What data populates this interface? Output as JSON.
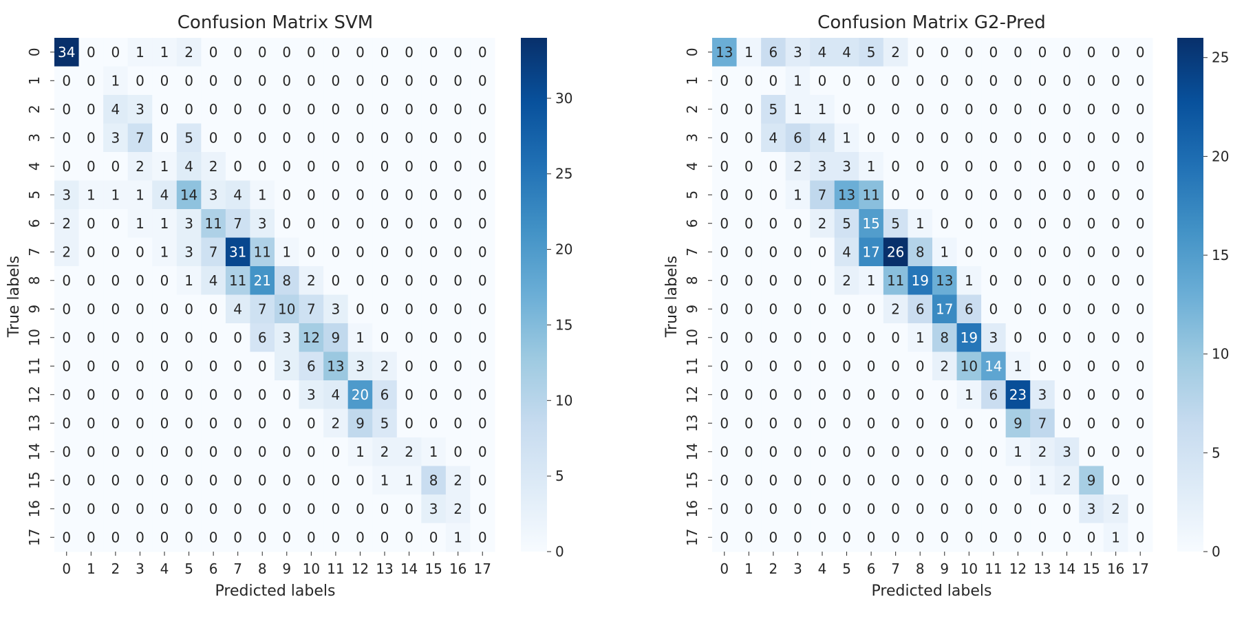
{
  "chart_data": [
    {
      "type": "heatmap",
      "title": "Confusion Matrix SVM",
      "xlabel": "Predicted labels",
      "ylabel": "True labels",
      "x_ticks": [
        "0",
        "1",
        "2",
        "3",
        "4",
        "5",
        "6",
        "7",
        "8",
        "9",
        "10",
        "11",
        "12",
        "13",
        "14",
        "15",
        "16",
        "17"
      ],
      "y_ticks": [
        "0",
        "1",
        "2",
        "3",
        "4",
        "5",
        "6",
        "7",
        "8",
        "9",
        "10",
        "11",
        "12",
        "13",
        "14",
        "15",
        "16",
        "17"
      ],
      "colormap": "Blues",
      "vmin": 0,
      "vmax": 34,
      "colorbar_ticks": [
        0,
        5,
        10,
        15,
        20,
        25,
        30
      ],
      "matrix": [
        [
          34,
          0,
          0,
          1,
          1,
          2,
          0,
          0,
          0,
          0,
          0,
          0,
          0,
          0,
          0,
          0,
          0,
          0
        ],
        [
          0,
          0,
          1,
          0,
          0,
          0,
          0,
          0,
          0,
          0,
          0,
          0,
          0,
          0,
          0,
          0,
          0,
          0
        ],
        [
          0,
          0,
          4,
          3,
          0,
          0,
          0,
          0,
          0,
          0,
          0,
          0,
          0,
          0,
          0,
          0,
          0,
          0
        ],
        [
          0,
          0,
          3,
          7,
          0,
          5,
          0,
          0,
          0,
          0,
          0,
          0,
          0,
          0,
          0,
          0,
          0,
          0
        ],
        [
          0,
          0,
          0,
          2,
          1,
          4,
          2,
          0,
          0,
          0,
          0,
          0,
          0,
          0,
          0,
          0,
          0,
          0
        ],
        [
          3,
          1,
          1,
          1,
          4,
          14,
          3,
          4,
          1,
          0,
          0,
          0,
          0,
          0,
          0,
          0,
          0,
          0
        ],
        [
          2,
          0,
          0,
          1,
          1,
          3,
          11,
          7,
          3,
          0,
          0,
          0,
          0,
          0,
          0,
          0,
          0,
          0
        ],
        [
          2,
          0,
          0,
          0,
          1,
          3,
          7,
          31,
          11,
          1,
          0,
          0,
          0,
          0,
          0,
          0,
          0,
          0
        ],
        [
          0,
          0,
          0,
          0,
          0,
          1,
          4,
          11,
          21,
          8,
          2,
          0,
          0,
          0,
          0,
          0,
          0,
          0
        ],
        [
          0,
          0,
          0,
          0,
          0,
          0,
          0,
          4,
          7,
          10,
          7,
          3,
          0,
          0,
          0,
          0,
          0,
          0
        ],
        [
          0,
          0,
          0,
          0,
          0,
          0,
          0,
          0,
          6,
          3,
          12,
          9,
          1,
          0,
          0,
          0,
          0,
          0
        ],
        [
          0,
          0,
          0,
          0,
          0,
          0,
          0,
          0,
          0,
          3,
          6,
          13,
          3,
          2,
          0,
          0,
          0,
          0
        ],
        [
          0,
          0,
          0,
          0,
          0,
          0,
          0,
          0,
          0,
          0,
          3,
          4,
          20,
          6,
          0,
          0,
          0,
          0
        ],
        [
          0,
          0,
          0,
          0,
          0,
          0,
          0,
          0,
          0,
          0,
          0,
          2,
          9,
          5,
          0,
          0,
          0,
          0
        ],
        [
          0,
          0,
          0,
          0,
          0,
          0,
          0,
          0,
          0,
          0,
          0,
          0,
          1,
          2,
          2,
          1,
          0,
          0
        ],
        [
          0,
          0,
          0,
          0,
          0,
          0,
          0,
          0,
          0,
          0,
          0,
          0,
          0,
          1,
          1,
          8,
          2,
          0
        ],
        [
          0,
          0,
          0,
          0,
          0,
          0,
          0,
          0,
          0,
          0,
          0,
          0,
          0,
          0,
          0,
          3,
          2,
          0
        ],
        [
          0,
          0,
          0,
          0,
          0,
          0,
          0,
          0,
          0,
          0,
          0,
          0,
          0,
          0,
          0,
          0,
          1,
          0
        ]
      ]
    },
    {
      "type": "heatmap",
      "title": "Confusion Matrix G2-Pred",
      "xlabel": "Predicted labels",
      "ylabel": "True labels",
      "x_ticks": [
        "0",
        "1",
        "2",
        "3",
        "4",
        "5",
        "6",
        "7",
        "8",
        "9",
        "10",
        "11",
        "12",
        "13",
        "14",
        "15",
        "16",
        "17"
      ],
      "y_ticks": [
        "0",
        "1",
        "2",
        "3",
        "4",
        "5",
        "6",
        "7",
        "8",
        "9",
        "10",
        "11",
        "12",
        "13",
        "14",
        "15",
        "16",
        "17"
      ],
      "colormap": "Blues",
      "vmin": 0,
      "vmax": 26,
      "colorbar_ticks": [
        0,
        5,
        10,
        15,
        20,
        25
      ],
      "matrix": [
        [
          13,
          1,
          6,
          3,
          4,
          4,
          5,
          2,
          0,
          0,
          0,
          0,
          0,
          0,
          0,
          0,
          0,
          0
        ],
        [
          0,
          0,
          0,
          1,
          0,
          0,
          0,
          0,
          0,
          0,
          0,
          0,
          0,
          0,
          0,
          0,
          0,
          0
        ],
        [
          0,
          0,
          5,
          1,
          1,
          0,
          0,
          0,
          0,
          0,
          0,
          0,
          0,
          0,
          0,
          0,
          0,
          0
        ],
        [
          0,
          0,
          4,
          6,
          4,
          1,
          0,
          0,
          0,
          0,
          0,
          0,
          0,
          0,
          0,
          0,
          0,
          0
        ],
        [
          0,
          0,
          0,
          2,
          3,
          3,
          1,
          0,
          0,
          0,
          0,
          0,
          0,
          0,
          0,
          0,
          0,
          0
        ],
        [
          0,
          0,
          0,
          1,
          7,
          13,
          11,
          0,
          0,
          0,
          0,
          0,
          0,
          0,
          0,
          0,
          0,
          0
        ],
        [
          0,
          0,
          0,
          0,
          2,
          5,
          15,
          5,
          1,
          0,
          0,
          0,
          0,
          0,
          0,
          0,
          0,
          0
        ],
        [
          0,
          0,
          0,
          0,
          0,
          4,
          17,
          26,
          8,
          1,
          0,
          0,
          0,
          0,
          0,
          0,
          0,
          0
        ],
        [
          0,
          0,
          0,
          0,
          0,
          2,
          1,
          11,
          19,
          13,
          1,
          0,
          0,
          0,
          0,
          0,
          0,
          0
        ],
        [
          0,
          0,
          0,
          0,
          0,
          0,
          0,
          2,
          6,
          17,
          6,
          0,
          0,
          0,
          0,
          0,
          0,
          0
        ],
        [
          0,
          0,
          0,
          0,
          0,
          0,
          0,
          0,
          1,
          8,
          19,
          3,
          0,
          0,
          0,
          0,
          0,
          0
        ],
        [
          0,
          0,
          0,
          0,
          0,
          0,
          0,
          0,
          0,
          2,
          10,
          14,
          1,
          0,
          0,
          0,
          0,
          0
        ],
        [
          0,
          0,
          0,
          0,
          0,
          0,
          0,
          0,
          0,
          0,
          1,
          6,
          23,
          3,
          0,
          0,
          0,
          0
        ],
        [
          0,
          0,
          0,
          0,
          0,
          0,
          0,
          0,
          0,
          0,
          0,
          0,
          9,
          7,
          0,
          0,
          0,
          0
        ],
        [
          0,
          0,
          0,
          0,
          0,
          0,
          0,
          0,
          0,
          0,
          0,
          0,
          1,
          2,
          3,
          0,
          0,
          0
        ],
        [
          0,
          0,
          0,
          0,
          0,
          0,
          0,
          0,
          0,
          0,
          0,
          0,
          0,
          1,
          2,
          9,
          0,
          0
        ],
        [
          0,
          0,
          0,
          0,
          0,
          0,
          0,
          0,
          0,
          0,
          0,
          0,
          0,
          0,
          0,
          3,
          2,
          0
        ],
        [
          0,
          0,
          0,
          0,
          0,
          0,
          0,
          0,
          0,
          0,
          0,
          0,
          0,
          0,
          0,
          0,
          1,
          0
        ]
      ]
    }
  ]
}
